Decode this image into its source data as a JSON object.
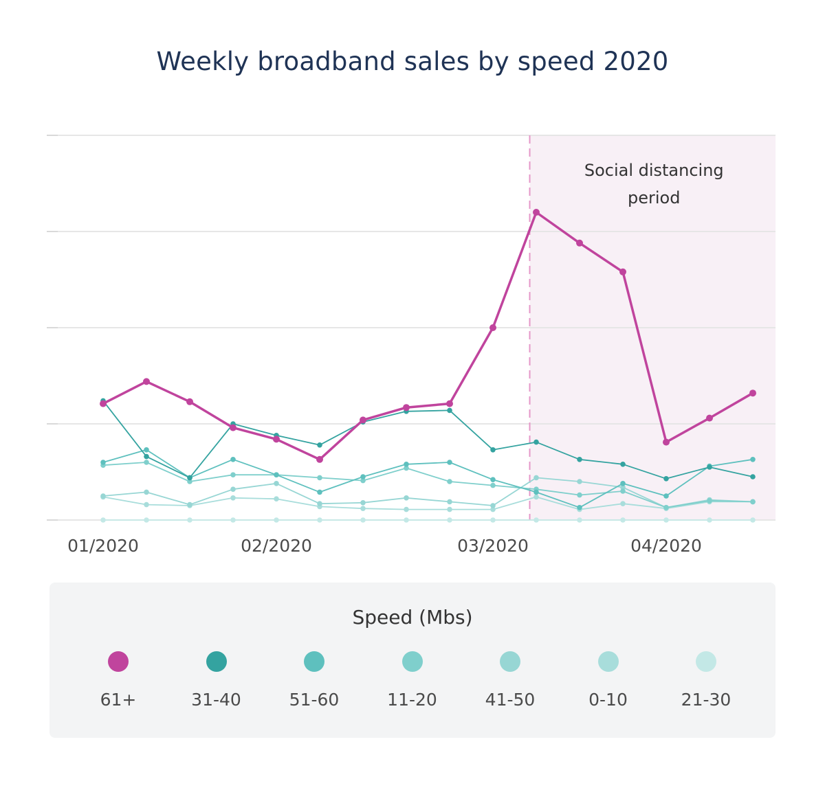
{
  "title": "Weekly broadband sales by speed 2020",
  "annotation": {
    "line1": "Social distancing",
    "line2": "period",
    "start_week_index": 10,
    "fill_color": "#f8f0f6",
    "line_color": "#e597c8"
  },
  "legend": {
    "title": "Speed (Mbs)"
  },
  "chart_data": {
    "type": "line",
    "title": "Weekly broadband sales by speed 2020",
    "xlabel": "",
    "ylabel": "",
    "x_week_index": [
      0,
      1,
      2,
      3,
      4,
      5,
      6,
      7,
      8,
      9,
      10,
      11,
      12,
      13,
      14,
      15
    ],
    "x_tick_labels": [
      {
        "week": 0,
        "label": "01/2020"
      },
      {
        "week": 4,
        "label": "02/2020"
      },
      {
        "week": 9,
        "label": "03/2020"
      },
      {
        "week": 13,
        "label": "04/2020"
      }
    ],
    "ylim": [
      0,
      4
    ],
    "y_gridlines": [
      0,
      1,
      2,
      3,
      4
    ],
    "y_tick_labels_visible": false,
    "series": [
      {
        "name": "61+",
        "color": "#c0449d",
        "values": [
          1.21,
          1.44,
          1.23,
          0.96,
          0.84,
          0.63,
          1.04,
          1.17,
          1.21,
          2.0,
          3.2,
          2.88,
          2.58,
          0.81,
          1.06,
          1.32
        ]
      },
      {
        "name": "31-40",
        "color": "#34a3a0",
        "values": [
          1.24,
          0.66,
          0.44,
          1.0,
          0.88,
          0.78,
          1.02,
          1.13,
          1.14,
          0.73,
          0.81,
          0.63,
          0.58,
          0.43,
          0.55,
          0.45
        ]
      },
      {
        "name": "51-60",
        "color": "#5ec0be",
        "values": [
          0.6,
          0.73,
          0.44,
          0.63,
          0.47,
          0.29,
          0.45,
          0.58,
          0.6,
          0.42,
          0.29,
          0.13,
          0.38,
          0.25,
          0.56,
          0.63
        ]
      },
      {
        "name": "11-20",
        "color": "#7fcfcc",
        "values": [
          0.57,
          0.6,
          0.4,
          0.47,
          0.47,
          0.44,
          0.41,
          0.54,
          0.4,
          0.36,
          0.32,
          0.26,
          0.3,
          0.13,
          0.2,
          0.19
        ]
      },
      {
        "name": "41-50",
        "color": "#97d6d4",
        "values": [
          0.25,
          0.29,
          0.16,
          0.32,
          0.38,
          0.17,
          0.18,
          0.23,
          0.19,
          0.15,
          0.44,
          0.4,
          0.34,
          0.13,
          0.21,
          0.19
        ]
      },
      {
        "name": "0-10",
        "color": "#a8dddb",
        "values": [
          0.24,
          0.16,
          0.15,
          0.23,
          0.22,
          0.14,
          0.12,
          0.11,
          0.11,
          0.11,
          0.24,
          0.11,
          0.17,
          0.12,
          0.19,
          0.19
        ]
      },
      {
        "name": "21-30",
        "color": "#c3e8e6",
        "values": [
          0.0,
          0.0,
          0.0,
          0.0,
          0.0,
          0.0,
          0.0,
          0.0,
          0.0,
          0.0,
          0.0,
          0.0,
          0.0,
          0.0,
          0.0,
          0.0
        ]
      }
    ]
  }
}
